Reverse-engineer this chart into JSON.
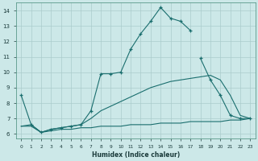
{
  "xlabel": "Humidex (Indice chaleur)",
  "bg_color": "#cce8e8",
  "grid_color_major": "#aacccc",
  "grid_color_minor": "#bbdddd",
  "line_color": "#1a6e6e",
  "xlim": [
    -0.5,
    23.5
  ],
  "ylim": [
    5.7,
    14.5
  ],
  "yticks": [
    6,
    7,
    8,
    9,
    10,
    11,
    12,
    13,
    14
  ],
  "xtick_labels": [
    "0",
    "1",
    "2",
    "3",
    "4",
    "5",
    "6",
    "7",
    "8",
    "9",
    "10",
    "11",
    "12",
    "13",
    "14",
    "15",
    "16",
    "17",
    "18",
    "19",
    "20",
    "21",
    "22",
    "23"
  ],
  "series": [
    {
      "x": [
        0,
        1,
        2,
        3,
        4,
        5,
        6,
        7,
        8,
        9,
        10,
        11,
        12,
        13,
        14,
        15,
        16,
        17
      ],
      "y": [
        8.5,
        6.6,
        6.1,
        6.3,
        6.4,
        6.5,
        6.6,
        7.5,
        9.9,
        9.9,
        10.0,
        11.5,
        12.5,
        13.3,
        14.2,
        13.5,
        13.3,
        12.7
      ],
      "marker": "+"
    },
    {
      "x": [
        18,
        19,
        20,
        21,
        22,
        23
      ],
      "y": [
        10.9,
        9.5,
        8.5,
        7.2,
        7.0,
        7.0
      ],
      "marker": "+"
    },
    {
      "x": [
        0,
        1,
        2,
        3,
        4,
        5,
        6,
        7,
        8,
        9,
        10,
        11,
        12,
        13,
        14,
        15,
        16,
        17,
        18,
        19,
        20,
        21,
        22,
        23
      ],
      "y": [
        6.5,
        6.5,
        6.1,
        6.2,
        6.3,
        6.3,
        6.4,
        6.4,
        6.5,
        6.5,
        6.5,
        6.6,
        6.6,
        6.6,
        6.7,
        6.7,
        6.7,
        6.8,
        6.8,
        6.8,
        6.8,
        6.9,
        6.9,
        7.0
      ],
      "marker": null
    },
    {
      "x": [
        0,
        1,
        2,
        3,
        4,
        5,
        6,
        7,
        8,
        9,
        10,
        11,
        12,
        13,
        14,
        15,
        16,
        17,
        18,
        19,
        20,
        21,
        22,
        23
      ],
      "y": [
        6.5,
        6.6,
        6.1,
        6.3,
        6.4,
        6.5,
        6.6,
        7.0,
        7.5,
        7.8,
        8.1,
        8.4,
        8.7,
        9.0,
        9.2,
        9.4,
        9.5,
        9.6,
        9.7,
        9.8,
        9.5,
        8.5,
        7.2,
        7.0
      ],
      "marker": null
    }
  ]
}
